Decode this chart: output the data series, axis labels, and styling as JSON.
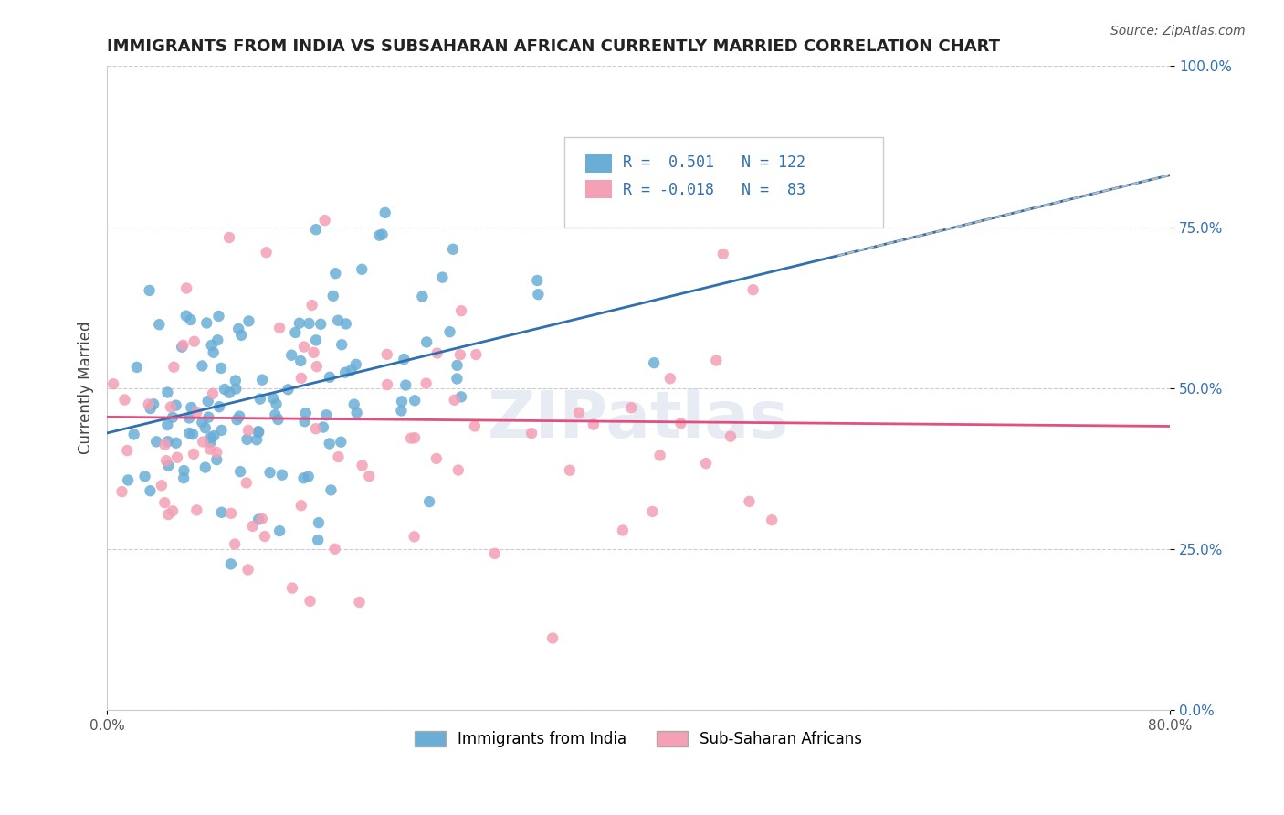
{
  "title": "IMMIGRANTS FROM INDIA VS SUBSAHARAN AFRICAN CURRENTLY MARRIED CORRELATION CHART",
  "source": "Source: ZipAtlas.com",
  "xlabel_bottom": "",
  "ylabel": "Currently Married",
  "xlim": [
    0.0,
    0.8
  ],
  "ylim": [
    0.0,
    1.0
  ],
  "xtick_labels": [
    "0.0%",
    "80.0%"
  ],
  "ytick_labels": [
    "0.0%",
    "25.0%",
    "50.0%",
    "75.0%",
    "100.0%"
  ],
  "ytick_values": [
    0.0,
    0.25,
    0.5,
    0.75,
    1.0
  ],
  "xtick_values": [
    0.0,
    0.8
  ],
  "legend_r1": "R =  0.501",
  "legend_n1": "N = 122",
  "legend_r2": "R = -0.018",
  "legend_n2": "N =  83",
  "blue_color": "#6aaed6",
  "pink_color": "#f4a0b5",
  "blue_line_color": "#3070b0",
  "pink_line_color": "#e05080",
  "trend_line_dashed_color": "#bbbbbb",
  "watermark": "ZIPatlas",
  "background_color": "#ffffff",
  "india_slope": 0.501,
  "india_intercept": 0.43,
  "africa_slope": -0.018,
  "africa_intercept": 0.455,
  "india_seed": 42,
  "africa_seed": 123,
  "india_n": 122,
  "africa_n": 83
}
